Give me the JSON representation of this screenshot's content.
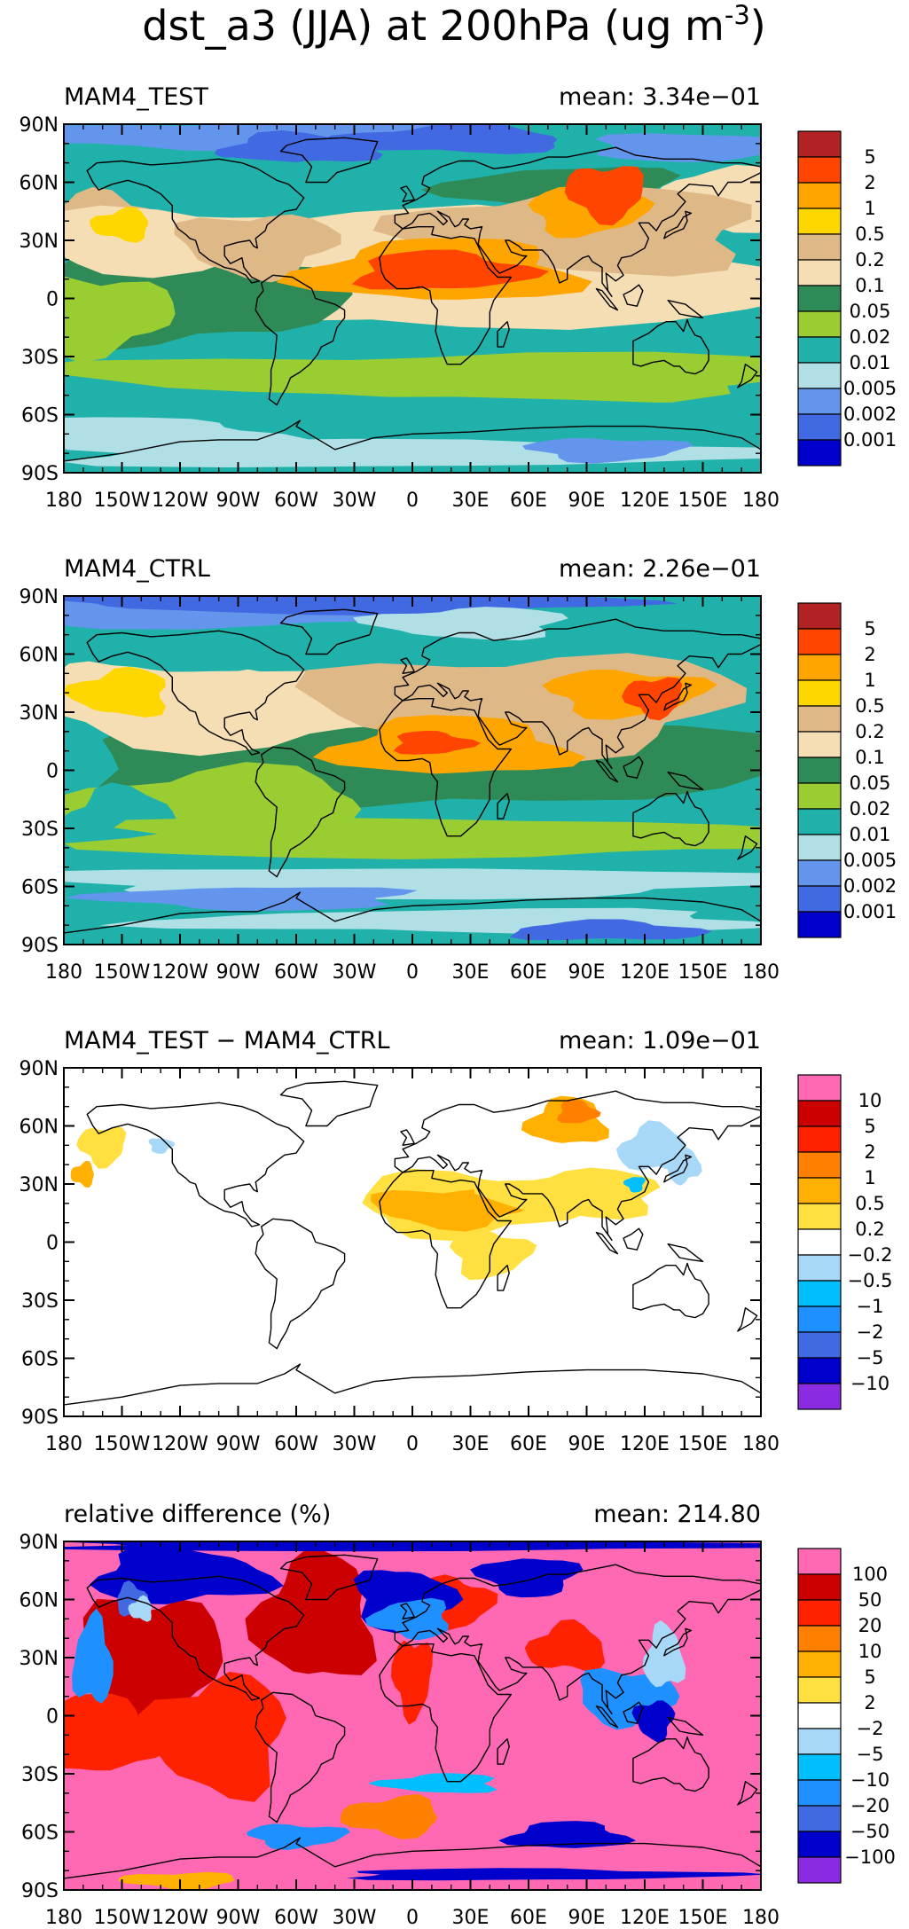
{
  "figure": {
    "title": "dst_a3 (JJA) at 200hPa (ug m",
    "title_superscript": "-3",
    "title_close": ")"
  },
  "axes": {
    "lat_ticks": [
      "90N",
      "60N",
      "30N",
      "0",
      "30S",
      "60S",
      "90S"
    ],
    "lon_ticks": [
      "180",
      "150W",
      "120W",
      "90W",
      "60W",
      "30W",
      "0",
      "30E",
      "60E",
      "90E",
      "120E",
      "150E",
      "180"
    ]
  },
  "panels": [
    {
      "name": "MAM4_TEST",
      "mean_text": "mean: 3.34e−01",
      "colorbar": {
        "labels": [
          "5",
          "2",
          "1",
          "0.5",
          "0.2",
          "0.1",
          "0.05",
          "0.02",
          "0.01",
          "0.005",
          "0.002",
          "0.001"
        ],
        "colors": [
          "#b22222",
          "#ff4500",
          "#ffa500",
          "#ffd700",
          "#deb887",
          "#f5deb3",
          "#2e8b57",
          "#9acd32",
          "#20b2aa",
          "#b0e0e6",
          "#6495ed",
          "#4169e1",
          "#0000cd"
        ]
      }
    },
    {
      "name": "MAM4_CTRL",
      "mean_text": "mean: 2.26e−01",
      "colorbar": {
        "labels": [
          "5",
          "2",
          "1",
          "0.5",
          "0.2",
          "0.1",
          "0.05",
          "0.02",
          "0.01",
          "0.005",
          "0.002",
          "0.001"
        ],
        "colors": [
          "#b22222",
          "#ff4500",
          "#ffa500",
          "#ffd700",
          "#deb887",
          "#f5deb3",
          "#2e8b57",
          "#9acd32",
          "#20b2aa",
          "#b0e0e6",
          "#6495ed",
          "#4169e1",
          "#0000cd"
        ]
      }
    },
    {
      "name": "MAM4_TEST − MAM4_CTRL",
      "mean_text": "mean: 1.09e−01",
      "colorbar": {
        "labels": [
          "10",
          "5",
          "2",
          "1",
          "0.5",
          "0.2",
          "−0.2",
          "−0.5",
          "−1",
          "−2",
          "−5",
          "−10"
        ],
        "colors": [
          "#ff69b4",
          "#cc0000",
          "#ff2200",
          "#ff7f00",
          "#ffb000",
          "#ffe040",
          "#ffffff",
          "#a8d8f8",
          "#00bfff",
          "#1e90ff",
          "#4169e1",
          "#0000cd",
          "#8a2be2"
        ]
      }
    },
    {
      "name": "relative difference (%)",
      "mean_text": "mean: 214.80",
      "colorbar": {
        "labels": [
          "100",
          "50",
          "20",
          "10",
          "5",
          "2",
          "−2",
          "−5",
          "−10",
          "−20",
          "−50",
          "−100"
        ],
        "colors": [
          "#ff69b4",
          "#cc0000",
          "#ff2200",
          "#ff7f00",
          "#ffb000",
          "#ffe040",
          "#ffffff",
          "#a8d8f8",
          "#00bfff",
          "#1e90ff",
          "#4169e1",
          "#0000cd",
          "#8a2be2"
        ]
      }
    }
  ]
}
